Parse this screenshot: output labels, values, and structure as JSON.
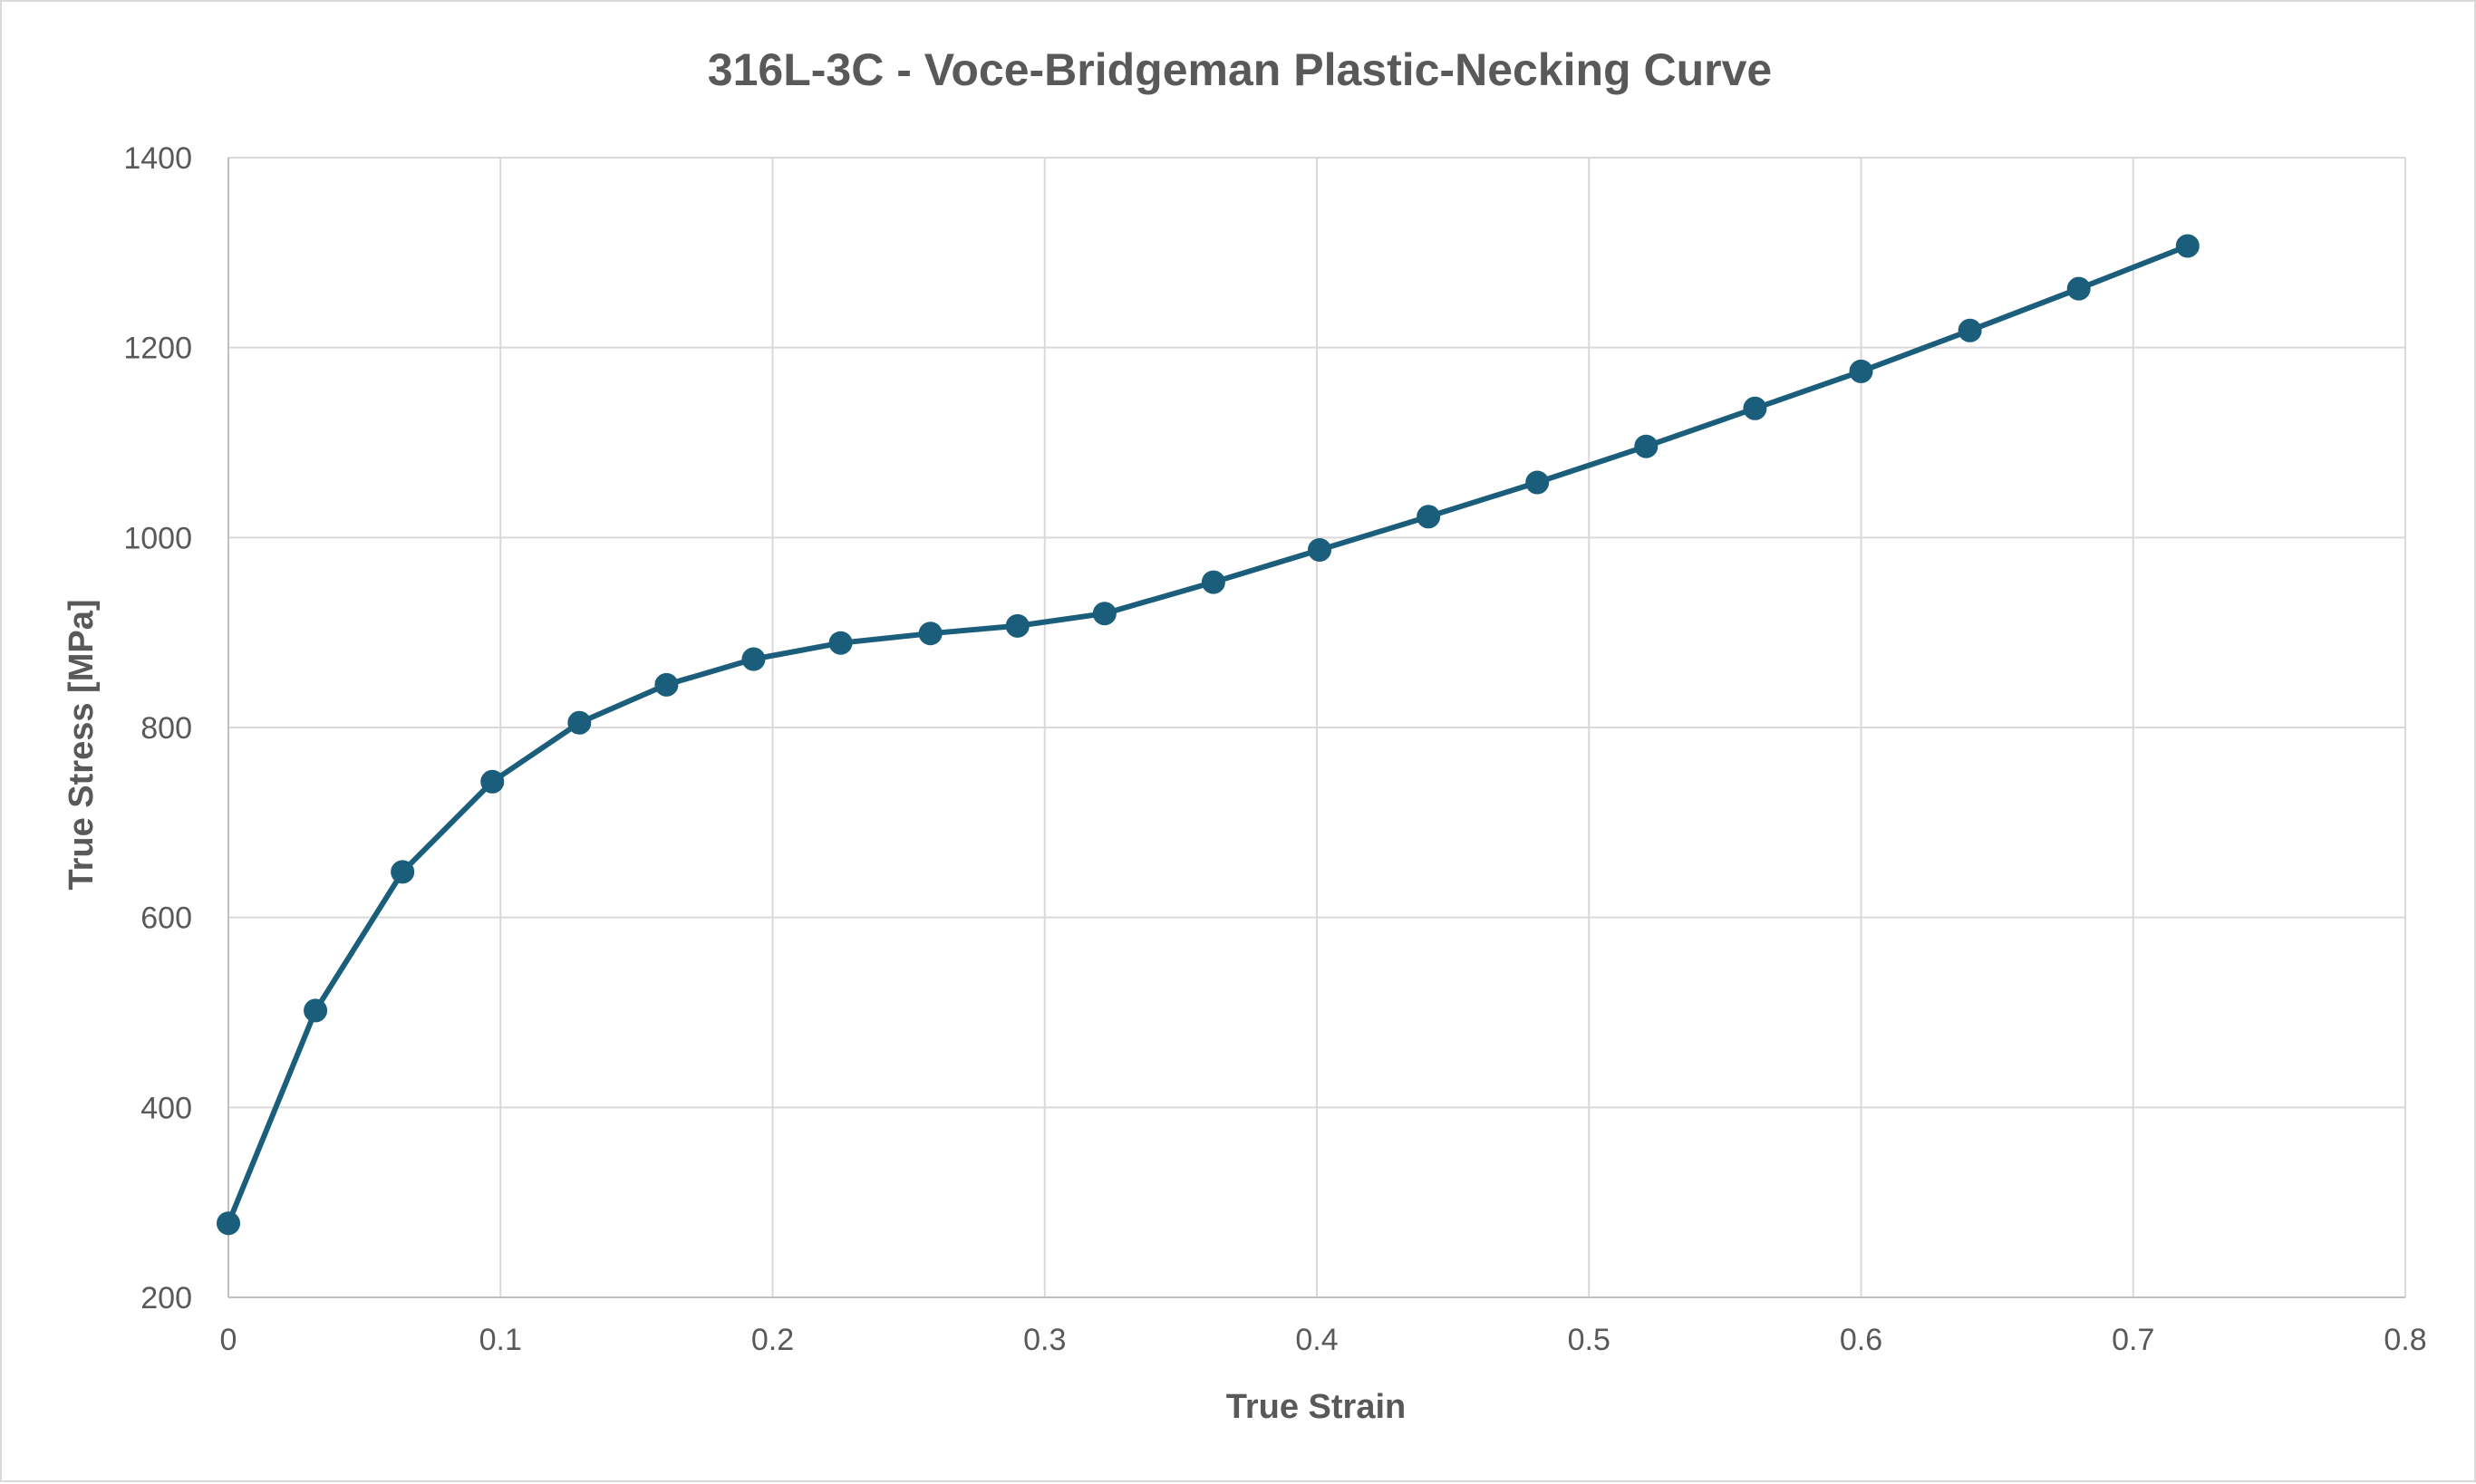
{
  "chart_data": {
    "type": "scatter",
    "title": "316L-3C - Voce-Bridgeman Plastic-Necking Curve",
    "xlabel": "True Strain",
    "ylabel": "True Stress [MPa]",
    "xlim": [
      0,
      0.8
    ],
    "ylim": [
      200,
      1400
    ],
    "x_ticks": [
      "0",
      "0.1",
      "0.2",
      "0.3",
      "0.4",
      "0.5",
      "0.6",
      "0.7",
      "0.8"
    ],
    "y_ticks": [
      "200",
      "400",
      "600",
      "800",
      "1000",
      "1200",
      "1400"
    ],
    "grid": true,
    "legend": "none",
    "marker": "circle",
    "line": "straight",
    "series": [
      {
        "color": "#1b5e7b",
        "points": [
          {
            "x": 0.0,
            "y": 278
          },
          {
            "x": 0.032,
            "y": 502
          },
          {
            "x": 0.064,
            "y": 648
          },
          {
            "x": 0.097,
            "y": 743
          },
          {
            "x": 0.129,
            "y": 805
          },
          {
            "x": 0.161,
            "y": 845
          },
          {
            "x": 0.193,
            "y": 872
          },
          {
            "x": 0.225,
            "y": 889
          },
          {
            "x": 0.258,
            "y": 899
          },
          {
            "x": 0.29,
            "y": 907
          },
          {
            "x": 0.322,
            "y": 920
          },
          {
            "x": 0.362,
            "y": 953
          },
          {
            "x": 0.401,
            "y": 987
          },
          {
            "x": 0.441,
            "y": 1022
          },
          {
            "x": 0.481,
            "y": 1058
          },
          {
            "x": 0.521,
            "y": 1096
          },
          {
            "x": 0.561,
            "y": 1136
          },
          {
            "x": 0.6,
            "y": 1175
          },
          {
            "x": 0.64,
            "y": 1218
          },
          {
            "x": 0.68,
            "y": 1262
          },
          {
            "x": 0.72,
            "y": 1307
          }
        ]
      }
    ]
  }
}
